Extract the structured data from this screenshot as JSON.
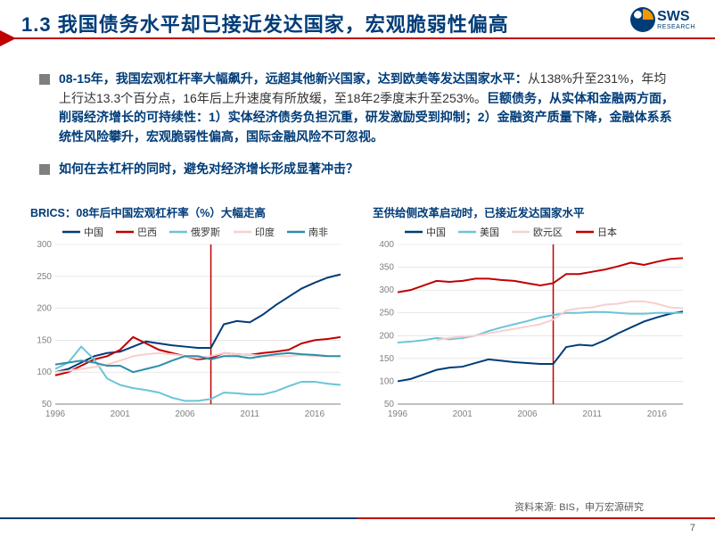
{
  "header": {
    "section_num": "1.3",
    "title_text": "我国债务水平却已接近发达国家，宏观脆弱性偏高",
    "logo_main": "SWS",
    "logo_sub": "RESEARCH"
  },
  "bullets": [
    {
      "lead_bold": "08-15年，我国宏观杠杆率大幅飙升，远超其他新兴国家，达到欧美等发达国家水平：",
      "regular": "从138%升至231%，年均上行达13.3个百分点，16年后上升速度有所放缓，至18年2季度末升至253%。",
      "bold2": "巨额债务，从实体和金融两方面，削弱经济增长的可持续性：1）实体经济债务负担沉重，研发激励受到抑制；2）金融资产质量下降，金融体系系统性风险攀升，宏观脆弱性偏高，国际金融风险不可忽视。"
    }
  ],
  "question": "如何在去杠杆的同时，避免对经济增长形成显著冲击？",
  "chart_left": {
    "title": "BRICS：08年后中国宏观杠杆率（%）大幅走高",
    "type": "line",
    "ylim": [
      50,
      300
    ],
    "ytick_step": 50,
    "x_years": [
      1996,
      2001,
      2006,
      2011,
      2016
    ],
    "x_range": [
      1996,
      2018
    ],
    "marker_year": 2008,
    "marker_color": "#c00000",
    "axis_color": "#808080",
    "grid_color": "#d9d9d9",
    "tick_fontsize": 10,
    "legend_fontsize": 11,
    "series": [
      {
        "name": "中国",
        "color": "#003c78",
        "y_by_year": {
          "1996": 100,
          "1997": 105,
          "1998": 115,
          "1999": 125,
          "2000": 130,
          "2001": 132,
          "2002": 140,
          "2003": 148,
          "2004": 145,
          "2005": 142,
          "2006": 140,
          "2007": 138,
          "2008": 138,
          "2009": 175,
          "2010": 180,
          "2011": 178,
          "2012": 190,
          "2013": 205,
          "2014": 218,
          "2015": 231,
          "2016": 240,
          "2017": 248,
          "2018": 253
        }
      },
      {
        "name": "巴西",
        "color": "#c00000",
        "y_by_year": {
          "1996": 95,
          "1997": 100,
          "1998": 110,
          "1999": 120,
          "2000": 125,
          "2001": 135,
          "2002": 155,
          "2003": 145,
          "2004": 135,
          "2005": 130,
          "2006": 125,
          "2007": 120,
          "2008": 122,
          "2009": 130,
          "2010": 128,
          "2011": 127,
          "2012": 130,
          "2013": 132,
          "2014": 135,
          "2015": 145,
          "2016": 150,
          "2017": 152,
          "2018": 155
        }
      },
      {
        "name": "俄罗斯",
        "color": "#6cc4d8",
        "y_by_year": {
          "1996": 105,
          "1997": 115,
          "1998": 140,
          "1999": 120,
          "2000": 90,
          "2001": 80,
          "2002": 75,
          "2003": 72,
          "2004": 68,
          "2005": 60,
          "2006": 55,
          "2007": 55,
          "2008": 58,
          "2009": 68,
          "2010": 67,
          "2011": 65,
          "2012": 65,
          "2013": 70,
          "2014": 78,
          "2015": 85,
          "2016": 85,
          "2017": 82,
          "2018": 80
        }
      },
      {
        "name": "印度",
        "color": "#f8cfcf",
        "y_by_year": {
          "1996": 100,
          "1997": 102,
          "1998": 105,
          "1999": 108,
          "2000": 112,
          "2001": 118,
          "2002": 125,
          "2003": 128,
          "2004": 130,
          "2005": 128,
          "2006": 125,
          "2007": 122,
          "2008": 125,
          "2009": 130,
          "2010": 128,
          "2011": 127,
          "2012": 126,
          "2013": 125,
          "2014": 125,
          "2015": 127,
          "2016": 125,
          "2017": 125,
          "2018": 125
        }
      },
      {
        "name": "南非",
        "color": "#2a8fa8",
        "y_by_year": {
          "1996": 112,
          "1997": 115,
          "1998": 118,
          "1999": 115,
          "2000": 110,
          "2001": 110,
          "2002": 100,
          "2003": 105,
          "2004": 110,
          "2005": 118,
          "2006": 125,
          "2007": 125,
          "2008": 120,
          "2009": 125,
          "2010": 125,
          "2011": 122,
          "2012": 125,
          "2013": 128,
          "2014": 130,
          "2015": 128,
          "2016": 127,
          "2017": 125,
          "2018": 125
        }
      }
    ]
  },
  "chart_right": {
    "title": "至供给侧改革启动时，已接近发达国家水平",
    "type": "line",
    "ylim": [
      50,
      400
    ],
    "ytick_step": 50,
    "x_years": [
      1996,
      2001,
      2006,
      2011,
      2016
    ],
    "x_range": [
      1996,
      2018
    ],
    "marker_year": 2008,
    "marker_color": "#c00000",
    "axis_color": "#808080",
    "grid_color": "#d9d9d9",
    "tick_fontsize": 10,
    "legend_fontsize": 11,
    "series": [
      {
        "name": "中国",
        "color": "#003c78",
        "y_by_year": {
          "1996": 100,
          "1997": 105,
          "1998": 115,
          "1999": 125,
          "2000": 130,
          "2001": 132,
          "2002": 140,
          "2003": 148,
          "2004": 145,
          "2005": 142,
          "2006": 140,
          "2007": 138,
          "2008": 138,
          "2009": 175,
          "2010": 180,
          "2011": 178,
          "2012": 190,
          "2013": 205,
          "2014": 218,
          "2015": 231,
          "2016": 240,
          "2017": 248,
          "2018": 253
        }
      },
      {
        "name": "美国",
        "color": "#6cc4d8",
        "y_by_year": {
          "1996": 185,
          "1997": 187,
          "1998": 190,
          "1999": 195,
          "2000": 192,
          "2001": 195,
          "2002": 200,
          "2003": 210,
          "2004": 218,
          "2005": 225,
          "2006": 232,
          "2007": 240,
          "2008": 245,
          "2009": 250,
          "2010": 250,
          "2011": 252,
          "2012": 252,
          "2013": 250,
          "2014": 248,
          "2015": 248,
          "2016": 250,
          "2017": 250,
          "2018": 250
        }
      },
      {
        "name": "欧元区",
        "color": "#f8cfcf",
        "y_by_year": {
          "1999": 190,
          "2000": 195,
          "2001": 198,
          "2002": 200,
          "2003": 205,
          "2004": 210,
          "2005": 215,
          "2006": 220,
          "2007": 225,
          "2008": 235,
          "2009": 255,
          "2010": 260,
          "2011": 262,
          "2012": 268,
          "2013": 270,
          "2014": 275,
          "2015": 275,
          "2016": 270,
          "2017": 262,
          "2018": 260
        }
      },
      {
        "name": "日本",
        "color": "#c00000",
        "y_by_year": {
          "1996": 295,
          "1997": 300,
          "1998": 310,
          "1999": 320,
          "2000": 318,
          "2001": 320,
          "2002": 325,
          "2003": 325,
          "2004": 322,
          "2005": 320,
          "2006": 315,
          "2007": 310,
          "2008": 315,
          "2009": 335,
          "2010": 335,
          "2011": 340,
          "2012": 345,
          "2013": 352,
          "2014": 360,
          "2015": 355,
          "2016": 362,
          "2017": 368,
          "2018": 370
        }
      }
    ]
  },
  "source": "资料来源: BIS，申万宏源研究",
  "page_num": "7"
}
